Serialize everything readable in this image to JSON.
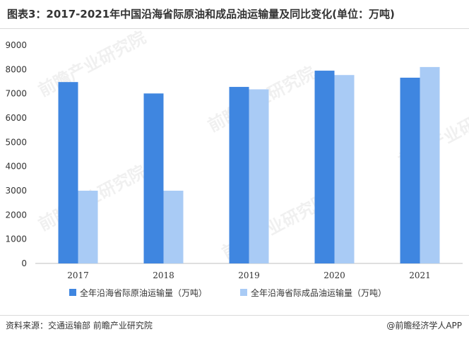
{
  "title": "图表3：2017-2021年中国沿海省际原油和成品油运输量及同比变化(单位：万吨)",
  "source": "资料来源：交通运输部 前瞻产业研究院",
  "brand": "@前瞻经济学人APP",
  "watermark": "前瞻产业研究院",
  "colors": {
    "series1": "#3f86e0",
    "series2": "#a9cbf5",
    "axis": "#bfbfbf",
    "grid": "#e6e6e6"
  },
  "chart_data": {
    "type": "bar",
    "categories": [
      "2017",
      "2018",
      "2019",
      "2020",
      "2021"
    ],
    "series": [
      {
        "name": "全年沿海省际原油运输量（万吨）",
        "values": [
          7480,
          7010,
          7280,
          7950,
          7660
        ]
      },
      {
        "name": "全年沿海省际成品油运输量（万吨）",
        "values": [
          3000,
          3000,
          7180,
          7770,
          8100
        ]
      }
    ],
    "yticks": [
      0,
      1000,
      2000,
      3000,
      4000,
      5000,
      6000,
      7000,
      8000,
      9000
    ],
    "ylim": [
      0,
      9000
    ],
    "legend": "bottom",
    "grid": false
  }
}
